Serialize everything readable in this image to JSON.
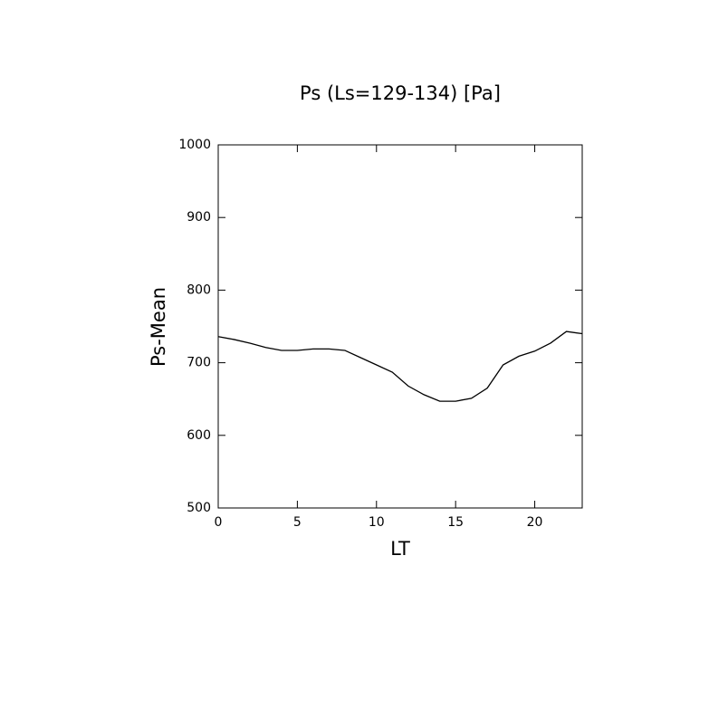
{
  "chart_data": {
    "type": "line",
    "title": "Ps (Ls=129-134) [Pa]",
    "xlabel": "LT",
    "ylabel": "Ps-Mean",
    "x": [
      0,
      1,
      2,
      3,
      4,
      5,
      6,
      7,
      8,
      9,
      10,
      11,
      12,
      13,
      14,
      15,
      16,
      17,
      18,
      19,
      20,
      21,
      22,
      23
    ],
    "series": [
      {
        "color": "#000000",
        "values": [
          736,
          732,
          727,
          721,
          717,
          717,
          719,
          719,
          717,
          707,
          697,
          687,
          668,
          656,
          647,
          647,
          651,
          665,
          697,
          709,
          716,
          727,
          743,
          740
        ]
      }
    ],
    "xlim": [
      0,
      23
    ],
    "xticks": [
      0,
      5,
      10,
      15,
      20
    ],
    "ylim": [
      500,
      1000
    ],
    "yticks": [
      500,
      600,
      700,
      800,
      900,
      1000
    ]
  }
}
